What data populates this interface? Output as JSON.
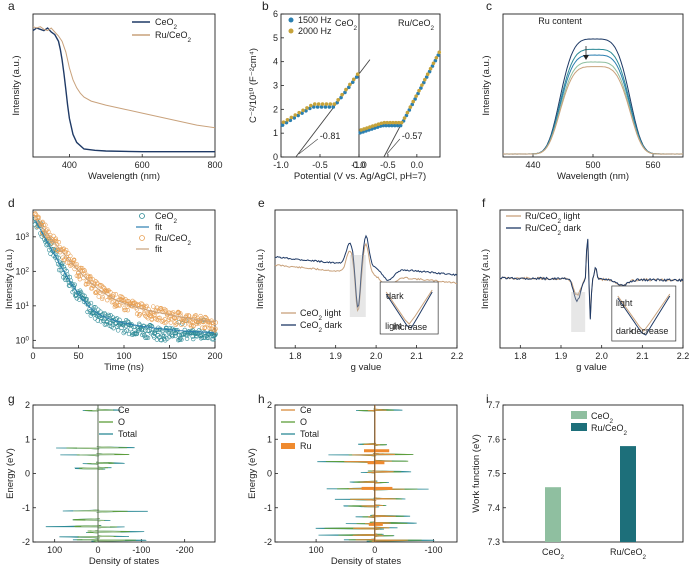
{
  "figure": {
    "colors": {
      "navy": "#1f3a66",
      "tan": "#c9a27c",
      "teal": "#2c8a96",
      "orange": "#e8a054",
      "blue": "#2b7fb0",
      "gold": "#c6a33a",
      "green": "#5e9e3a",
      "lightgreen": "#9dc08b",
      "ce_orange": "#d98c3c",
      "ru": "#ef8a2f",
      "darkteal": "#1d6f7a",
      "mint": "#8fbfa0"
    }
  },
  "chart_data": [
    {
      "id": "a",
      "type": "line",
      "panel_label": "a",
      "xlabel": "Wavelength (nm)",
      "ylabel": "Intensity (a.u.)",
      "xlim": [
        300,
        800
      ],
      "xticks": [
        "400",
        "600",
        "800"
      ],
      "series": [
        {
          "name": "CeO",
          "sub": "2",
          "legend": "CeO₂",
          "x": [
            300,
            310,
            320,
            330,
            340,
            350,
            360,
            370,
            375,
            380,
            385,
            390,
            395,
            400,
            410,
            420,
            440,
            470,
            500,
            600,
            700,
            800
          ],
          "y": [
            0.92,
            0.94,
            0.93,
            0.92,
            0.94,
            0.91,
            0.89,
            0.84,
            0.78,
            0.7,
            0.6,
            0.48,
            0.36,
            0.26,
            0.14,
            0.08,
            0.03,
            0.02,
            0.015,
            0.01,
            0.01,
            0.01
          ]
        },
        {
          "name": "Ru/CeO",
          "sub": "2",
          "legend": "Ru/CeO₂",
          "x": [
            300,
            310,
            320,
            330,
            340,
            350,
            360,
            370,
            380,
            390,
            400,
            410,
            420,
            430,
            440,
            460,
            500,
            550,
            600,
            650,
            700,
            750,
            800
          ],
          "y": [
            0.95,
            0.94,
            0.95,
            0.93,
            0.92,
            0.94,
            0.91,
            0.88,
            0.84,
            0.76,
            0.64,
            0.55,
            0.49,
            0.45,
            0.42,
            0.39,
            0.36,
            0.33,
            0.3,
            0.27,
            0.24,
            0.21,
            0.19
          ]
        }
      ]
    },
    {
      "id": "b",
      "type": "scatter",
      "panel_label": "b",
      "ylabel": "C⁻²/10¹⁰ (F⁻²cm⁴)",
      "xlabel": "Potential (V vs. Ag/AgCl, pH=7)",
      "ylim": [
        0,
        6
      ],
      "yticks": [
        "0",
        "1",
        "2",
        "3",
        "4",
        "5",
        "6"
      ],
      "subpanels": [
        {
          "name": "CeO",
          "sub": "2",
          "xlim": [
            -1.0,
            0.0
          ],
          "xticks": [
            "-1.0",
            "-0.5",
            "0.0"
          ],
          "intercept": -0.81,
          "intercept_label": "-0.81"
        },
        {
          "name": "Ru/CeO",
          "sub": "2",
          "xlim": [
            -1.0,
            0.4
          ],
          "xticks": [
            "-1.0",
            "-0.5",
            "0.0"
          ],
          "intercept": -0.57,
          "intercept_label": "-0.57"
        }
      ],
      "series": [
        {
          "name": "1500 Hz"
        },
        {
          "name": "2000 Hz"
        }
      ]
    },
    {
      "id": "c",
      "type": "line",
      "panel_label": "c",
      "xlabel": "Wavelength (nm)",
      "ylabel": "Intensity (a.u.)",
      "xlim": [
        410,
        590
      ],
      "xticks": [
        "440",
        "500",
        "560"
      ],
      "annotation": "Ru content",
      "series": [
        {
          "name": "s1",
          "peak": 1.0
        },
        {
          "name": "s2",
          "peak": 0.91
        },
        {
          "name": "s3",
          "peak": 0.86
        },
        {
          "name": "s4",
          "peak": 0.8
        },
        {
          "name": "s5",
          "peak": 0.76
        }
      ]
    },
    {
      "id": "d",
      "type": "scatter",
      "panel_label": "d",
      "xlabel": "Time (ns)",
      "ylabel": "Intensity (a.u.)",
      "xlim": [
        0,
        200
      ],
      "xticks": [
        "0",
        "50",
        "100",
        "150",
        "200"
      ],
      "ylim_log": [
        0.6,
        6000
      ],
      "yticks": [
        {
          "b": "10",
          "e": "0"
        },
        {
          "b": "10",
          "e": "1"
        },
        {
          "b": "10",
          "e": "2"
        },
        {
          "b": "10",
          "e": "3"
        }
      ],
      "series": [
        {
          "name": "CeO",
          "sub": "2",
          "tau": 9
        },
        {
          "name": "fit"
        },
        {
          "name": "Ru/CeO",
          "sub": "2",
          "tau": 13
        },
        {
          "name": "fit"
        }
      ]
    },
    {
      "id": "e",
      "type": "line",
      "panel_label": "e",
      "xlabel": "g value",
      "ylabel": "Intensity (a.u.)",
      "xlim": [
        1.75,
        2.2
      ],
      "xticks": [
        "1.8",
        "1.9",
        "2.0",
        "2.1",
        "2.2"
      ],
      "series": [
        {
          "name": "CeO",
          "sub": "2",
          "suffix": " light"
        },
        {
          "name": "CeO",
          "sub": "2",
          "suffix": " dark"
        }
      ],
      "inset": {
        "dark": "dark",
        "light": "light",
        "increase": "increase"
      }
    },
    {
      "id": "f",
      "type": "line",
      "panel_label": "f",
      "xlabel": "g value",
      "ylabel": "Intensity (a.u.)",
      "xlim": [
        1.75,
        2.2
      ],
      "xticks": [
        "1.8",
        "1.9",
        "2.0",
        "2.1",
        "2.2"
      ],
      "series": [
        {
          "name": "Ru/CeO",
          "sub": "2",
          "suffix": " light"
        },
        {
          "name": "Ru/CeO",
          "sub": "2",
          "suffix": " dark"
        }
      ],
      "inset": {
        "light": "light",
        "dark": "dark",
        "decrease": "decrease"
      }
    },
    {
      "id": "g",
      "type": "line",
      "panel_label": "g",
      "xlabel": "Density of states",
      "ylabel": "Energy (eV)",
      "xlim": [
        150,
        -270
      ],
      "xticks": [
        "100",
        "0",
        "-100",
        "-200"
      ],
      "ylim": [
        -2,
        2
      ],
      "yticks": [
        "-2",
        "-1",
        "0",
        "1",
        "2"
      ],
      "series": [
        {
          "name": "Ce"
        },
        {
          "name": "O"
        },
        {
          "name": "Total"
        }
      ]
    },
    {
      "id": "h",
      "type": "line",
      "panel_label": "h",
      "xlabel": "Density of states",
      "ylabel": "Energy (eV)",
      "xlim": [
        170,
        -140
      ],
      "xticks": [
        "100",
        "0",
        "-100"
      ],
      "ylim": [
        -2,
        2
      ],
      "yticks": [
        "-2",
        "-1",
        "0",
        "1",
        "2"
      ],
      "series": [
        {
          "name": "Ce"
        },
        {
          "name": "O"
        },
        {
          "name": "Total"
        },
        {
          "name": "Ru"
        }
      ]
    },
    {
      "id": "i",
      "type": "bar",
      "panel_label": "i",
      "ylabel": "Work function (eV)",
      "ylim": [
        7.3,
        7.7
      ],
      "yticks": [
        "7.3",
        "7.4",
        "7.5",
        "7.6",
        "7.7"
      ],
      "categories": [
        {
          "name": "CeO",
          "sub": "2"
        },
        {
          "name": "Ru/CeO",
          "sub": "2"
        }
      ],
      "values": [
        7.46,
        7.58
      ]
    }
  ]
}
